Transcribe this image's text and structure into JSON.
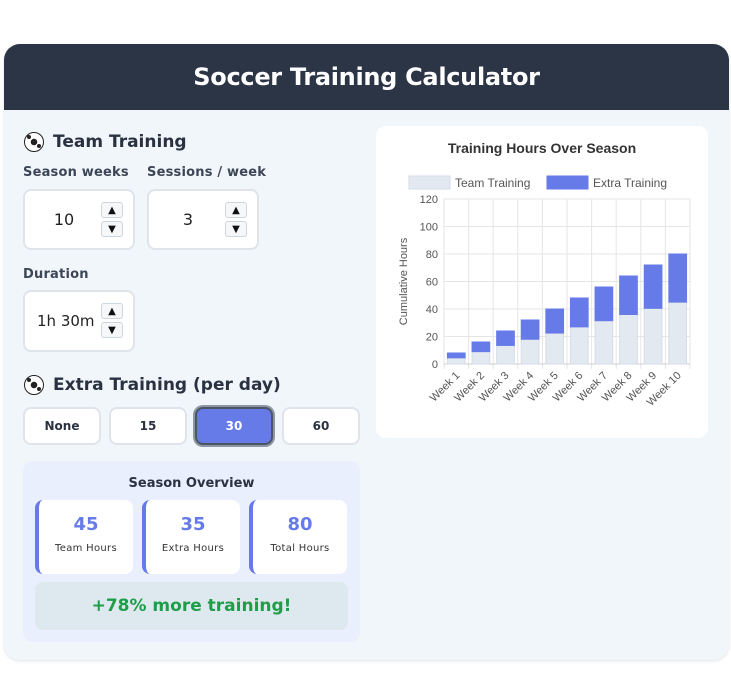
{
  "app": {
    "title": "Soccer Training Calculator"
  },
  "team_training": {
    "title": "Team Training",
    "season_weeks": {
      "label": "Season weeks",
      "value": "10"
    },
    "sessions_per_week": {
      "label": "Sessions / week",
      "value": "3"
    },
    "duration": {
      "label": "Duration",
      "value": "1h 30m"
    }
  },
  "extra_training": {
    "title": "Extra Training (per day)",
    "options": [
      "None",
      "15",
      "30",
      "60"
    ],
    "selected": "30"
  },
  "overview": {
    "title": "Season Overview",
    "stats": [
      {
        "value": "45",
        "label": "Team Hours"
      },
      {
        "value": "35",
        "label": "Extra Hours"
      },
      {
        "value": "80",
        "label": "Total Hours"
      }
    ],
    "banner": "+78% more training!"
  },
  "colors": {
    "accent": "#667ae8",
    "header": "#2c3546",
    "team_bar": "#e3e9f1",
    "success": "#1f9e4a"
  },
  "chart_data": {
    "type": "bar",
    "stacked": true,
    "title": "Training Hours Over Season",
    "ylabel": "Cumulative Hours",
    "xlabel": "",
    "ylim": [
      0,
      120
    ],
    "yticks": [
      0,
      20,
      40,
      60,
      80,
      100,
      120
    ],
    "grid": true,
    "legend": "top",
    "categories": [
      "Week 1",
      "Week 2",
      "Week 3",
      "Week 4",
      "Week 5",
      "Week 6",
      "Week 7",
      "Week 8",
      "Week 9",
      "Week 10"
    ],
    "series": [
      {
        "name": "Team Training",
        "color": "#e3e9f1",
        "values": [
          4.5,
          9,
          13.5,
          18,
          22.5,
          27,
          31.5,
          36,
          40.5,
          45
        ]
      },
      {
        "name": "Extra Training",
        "color": "#667ae8",
        "values": [
          3.5,
          7,
          10.5,
          14,
          17.5,
          21,
          24.5,
          28,
          31.5,
          35
        ]
      }
    ]
  }
}
